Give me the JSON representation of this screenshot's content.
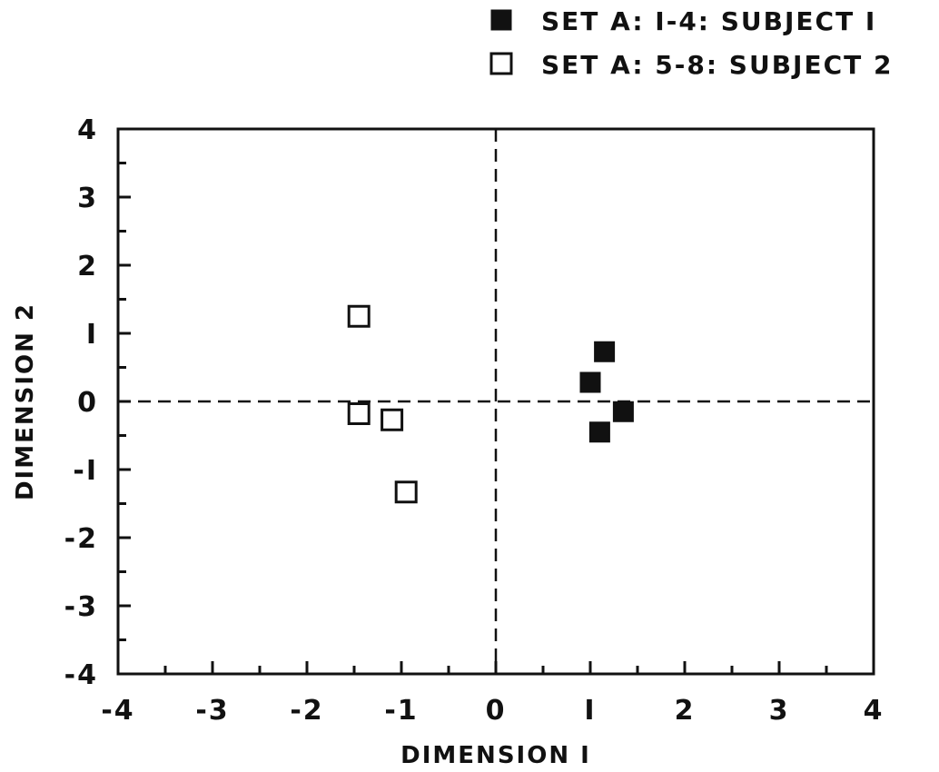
{
  "chart_data": {
    "type": "scatter",
    "xlabel": "DIMENSION I",
    "ylabel": "DIMENSION 2",
    "xlim": [
      -4,
      4
    ],
    "ylim": [
      -4,
      4
    ],
    "x_ticks": [
      -4,
      -3,
      -2,
      -1,
      0,
      1,
      2,
      3,
      4
    ],
    "y_ticks": [
      4,
      3,
      2,
      1,
      0,
      -1,
      -2,
      -3,
      -4
    ],
    "x_tick_labels": [
      "-4",
      "-3",
      "-2",
      "-1",
      "0",
      "I",
      "2",
      "3",
      "4"
    ],
    "y_tick_labels": [
      "4",
      "3",
      "2",
      "I",
      "0",
      "-I",
      "-2",
      "-3",
      "-4"
    ],
    "reference_lines": {
      "x": 0,
      "y": 0,
      "style": "dashed"
    },
    "grid": false,
    "legend_position": "top-right",
    "series": [
      {
        "name": "SET A: I-4: SUBJECT I",
        "marker": "filled-square",
        "color": "#111111",
        "points": [
          {
            "x": 1.15,
            "y": 0.73
          },
          {
            "x": 1.0,
            "y": 0.28
          },
          {
            "x": 1.35,
            "y": -0.15
          },
          {
            "x": 1.1,
            "y": -0.45
          }
        ]
      },
      {
        "name": "SET A: 5-8: SUBJECT 2",
        "marker": "open-square",
        "color": "#111111",
        "points": [
          {
            "x": -1.45,
            "y": 1.25
          },
          {
            "x": -1.45,
            "y": -0.18
          },
          {
            "x": -1.1,
            "y": -0.27
          },
          {
            "x": -0.95,
            "y": -1.33
          }
        ]
      }
    ]
  }
}
